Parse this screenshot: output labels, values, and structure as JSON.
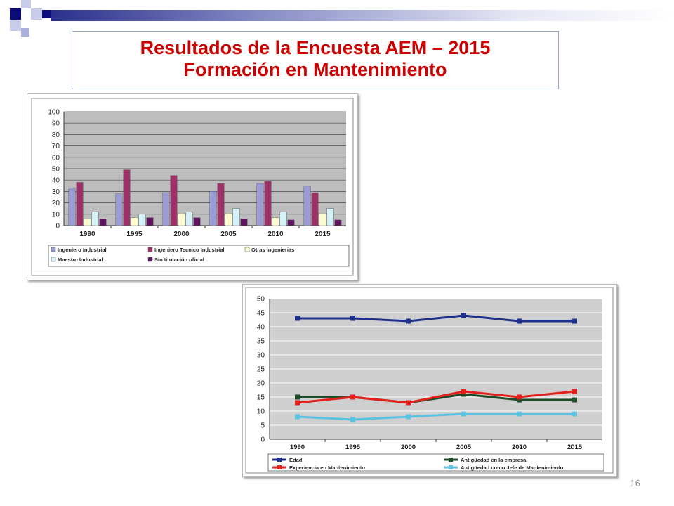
{
  "slide": {
    "title_line1": "Resultados de la Encuesta AEM – 2015",
    "title_line2": "Formación en Mantenimiento",
    "page_number": "16",
    "accent_color": "#cc0000"
  },
  "chart_data": [
    {
      "type": "bar",
      "categories": [
        "1990",
        "1995",
        "2000",
        "2005",
        "2010",
        "2015"
      ],
      "ylim": [
        0,
        100
      ],
      "yticks": [
        0,
        10,
        20,
        30,
        40,
        50,
        60,
        70,
        80,
        90,
        100
      ],
      "grid": true,
      "legend_position": "bottom",
      "series": [
        {
          "name": "Ingeniero Industrial",
          "color": "#9b9bd6",
          "values": [
            33,
            28,
            29,
            30,
            37,
            35
          ]
        },
        {
          "name": "Ingeniero Tecnico Industrial",
          "color": "#9b3166",
          "values": [
            38,
            49,
            44,
            37,
            39,
            29
          ]
        },
        {
          "name": "Otras ingenierias",
          "color": "#fdfbd0",
          "values": [
            6,
            7,
            11,
            11,
            7,
            11
          ]
        },
        {
          "name": "Maestro Industrial",
          "color": "#d5f2f8",
          "values": [
            12,
            10,
            12,
            15,
            12,
            15
          ]
        },
        {
          "name": "Sin titulación oficial",
          "color": "#5e1660",
          "values": [
            6,
            7,
            7,
            6,
            5,
            5
          ]
        }
      ]
    },
    {
      "type": "line",
      "categories": [
        "1990",
        "1995",
        "2000",
        "2005",
        "2010",
        "2015"
      ],
      "ylim": [
        0,
        50
      ],
      "yticks": [
        0,
        5,
        10,
        15,
        20,
        25,
        30,
        35,
        40,
        45,
        50
      ],
      "grid": true,
      "legend_position": "bottom",
      "series": [
        {
          "name": "Edad",
          "color": "#1f2f8c",
          "values": [
            43,
            43,
            42,
            44,
            42,
            42
          ]
        },
        {
          "name": "Antigüedad en la empresa",
          "color": "#1d4d28",
          "values": [
            15,
            15,
            13,
            16,
            14,
            14
          ]
        },
        {
          "name": "Experiencia en Mantenimiento",
          "color": "#e3201b",
          "values": [
            13,
            15,
            13,
            17,
            15,
            17
          ]
        },
        {
          "name": "Antigüedad como Jefe de Mantenimiento",
          "color": "#5bc3e1",
          "values": [
            8,
            7,
            8,
            9,
            9,
            9
          ]
        }
      ]
    }
  ]
}
